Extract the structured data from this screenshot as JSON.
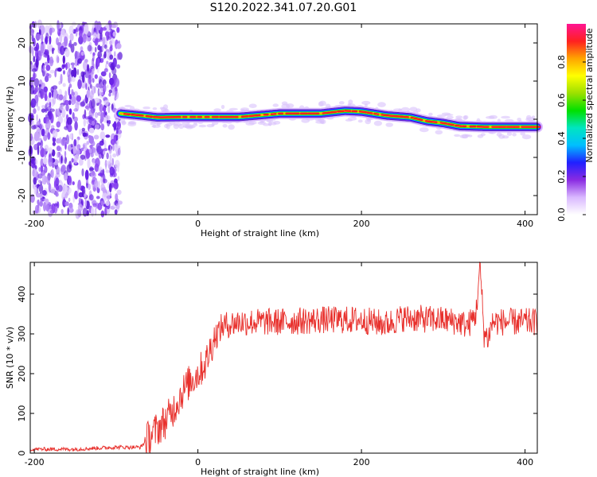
{
  "title": "S120.2022.341.07.20.G01",
  "colors": {
    "snr_line": "#e8302c",
    "axis": "#000000",
    "noise": "#7a3cf0",
    "colormap": [
      "#ffffff",
      "#d9b8ff",
      "#8a2be2",
      "#2020ff",
      "#00bfff",
      "#00e5c0",
      "#00e000",
      "#9be000",
      "#ffff00",
      "#ffa500",
      "#ff2020",
      "#ff1493"
    ]
  },
  "chart_data": [
    {
      "type": "heatmap",
      "title": "",
      "xlabel": "Height of straight line (km)",
      "ylabel": "Frequency (Hz)",
      "xlim": [
        -205,
        415
      ],
      "ylim": [
        -25,
        25
      ],
      "xticks": [
        -200,
        0,
        200,
        400
      ],
      "yticks": [
        -20,
        -10,
        0,
        10,
        20
      ],
      "colorbar": {
        "label": "Normalized spectral amplitude",
        "range": [
          0,
          1
        ],
        "ticks": [
          "0.0",
          "0.2",
          "0.4",
          "0.6",
          "0.8"
        ]
      },
      "ridge": {
        "x": [
          -95,
          -70,
          -50,
          -20,
          0,
          50,
          100,
          150,
          180,
          200,
          230,
          260,
          280,
          300,
          320,
          350,
          380,
          415
        ],
        "y": [
          1.5,
          1.0,
          0.5,
          0.6,
          0.6,
          0.6,
          1.5,
          1.5,
          2.2,
          2.0,
          1.0,
          0.5,
          -0.5,
          -1.0,
          -1.8,
          -2.0,
          -2.0,
          -2.0
        ]
      },
      "noise_region": [
        -205,
        -95
      ]
    },
    {
      "type": "line",
      "title": "",
      "xlabel": "Height of straight line (km)",
      "ylabel": "SNR (10 * v/v)",
      "xlim": [
        -205,
        415
      ],
      "ylim": [
        0,
        480
      ],
      "xticks": [
        -200,
        0,
        200,
        400
      ],
      "yticks": [
        0,
        100,
        200,
        300,
        400
      ],
      "series": [
        {
          "x": [
            -205,
            -150,
            -100,
            -70,
            -60,
            -50,
            -40,
            -30,
            -20,
            -10,
            0,
            10,
            15,
            20,
            30,
            50,
            80,
            100,
            150,
            200,
            230,
            250,
            300,
            320,
            330,
            340,
            345,
            350,
            355,
            360,
            380,
            400,
            415
          ],
          "y": [
            10,
            10,
            15,
            15,
            40,
            60,
            80,
            110,
            150,
            180,
            200,
            230,
            260,
            290,
            320,
            330,
            330,
            330,
            335,
            335,
            325,
            340,
            335,
            330,
            320,
            350,
            470,
            300,
            290,
            330,
            330,
            330,
            330
          ]
        }
      ]
    }
  ]
}
